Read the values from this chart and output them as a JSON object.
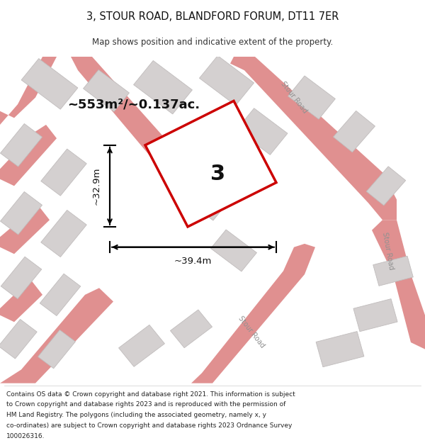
{
  "title": "3, STOUR ROAD, BLANDFORD FORUM, DT11 7ER",
  "subtitle": "Map shows position and indicative extent of the property.",
  "area_label": "~553m²/~0.137ac.",
  "width_label": "~39.4m",
  "height_label": "~32.9m",
  "plot_number": "3",
  "map_bg": "#f0eeee",
  "plot_outline_color": "#cc0000",
  "road_line_color": "#e09090",
  "building_color": "#d4d0d0",
  "building_edge_color": "#c0bcbc",
  "figsize": [
    6.0,
    6.25
  ],
  "footer_lines": [
    "Contains OS data © Crown copyright and database right 2021. This information is subject",
    "to Crown copyright and database rights 2023 and is reproduced with the permission of",
    "HM Land Registry. The polygons (including the associated geometry, namely x, y",
    "co-ordinates) are subject to Crown copyright and database rights 2023 Ordnance Survey",
    "100026316."
  ]
}
